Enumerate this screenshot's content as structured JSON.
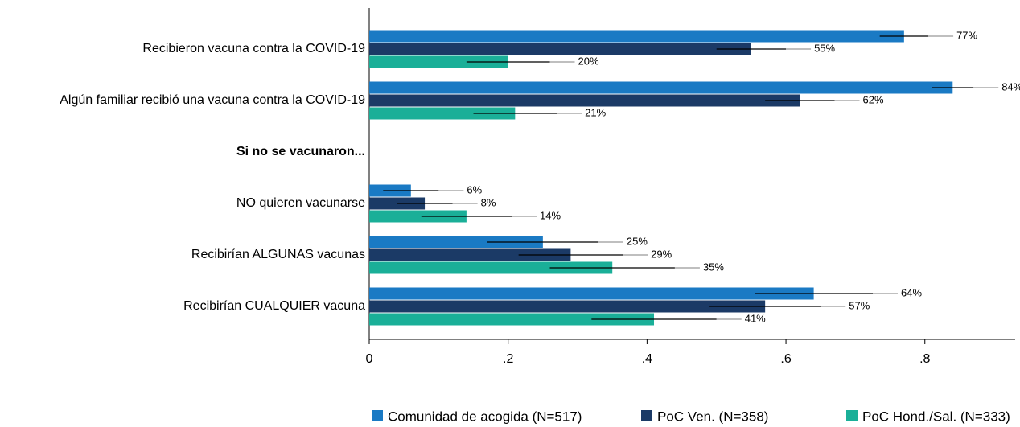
{
  "chart_data": {
    "type": "bar",
    "orientation": "horizontal",
    "categories": [
      "Recibieron vacuna contra la COVID-19",
      "Algún familiar recibió una vacuna contra la COVID-19",
      "Si no se vacunaron...",
      "NO quieren vacunarse",
      "Recibirían ALGUNAS vacunas",
      "Recibirían CUALQUIER vacuna"
    ],
    "series": [
      {
        "name": "Comunidad de acogida (N=517)",
        "color": "#1a7ac4",
        "values": [
          0.77,
          0.84,
          null,
          0.06,
          0.25,
          0.64
        ],
        "errors": [
          0.035,
          0.03,
          null,
          0.04,
          0.08,
          0.085
        ],
        "value_labels": [
          "77%",
          "84%",
          null,
          "6%",
          "25%",
          "64%"
        ]
      },
      {
        "name": "PoC Ven. (N=358)",
        "color": "#1b3a66",
        "values": [
          0.55,
          0.62,
          null,
          0.08,
          0.29,
          0.57
        ],
        "errors": [
          0.05,
          0.05,
          null,
          0.04,
          0.075,
          0.08
        ],
        "value_labels": [
          "55%",
          "62%",
          null,
          "8%",
          "29%",
          "57%"
        ]
      },
      {
        "name": "PoC Hond./Sal. (N=333)",
        "color": "#1aaf98",
        "values": [
          0.2,
          0.21,
          null,
          0.14,
          0.35,
          0.41
        ],
        "errors": [
          0.06,
          0.06,
          null,
          0.065,
          0.09,
          0.09
        ],
        "value_labels": [
          "20%",
          "21%",
          null,
          "14%",
          "35%",
          "41%"
        ]
      }
    ],
    "xlim": [
      0,
      0.93
    ],
    "xticks": [
      0,
      {
        "value": 0.2,
        "label": ".2"
      },
      {
        "value": 0.4,
        "label": ".4"
      },
      {
        "value": 0.6,
        "label": ".6"
      },
      {
        "value": 0.8,
        "label": ".8"
      }
    ],
    "grid": false,
    "legend": "bottom"
  }
}
